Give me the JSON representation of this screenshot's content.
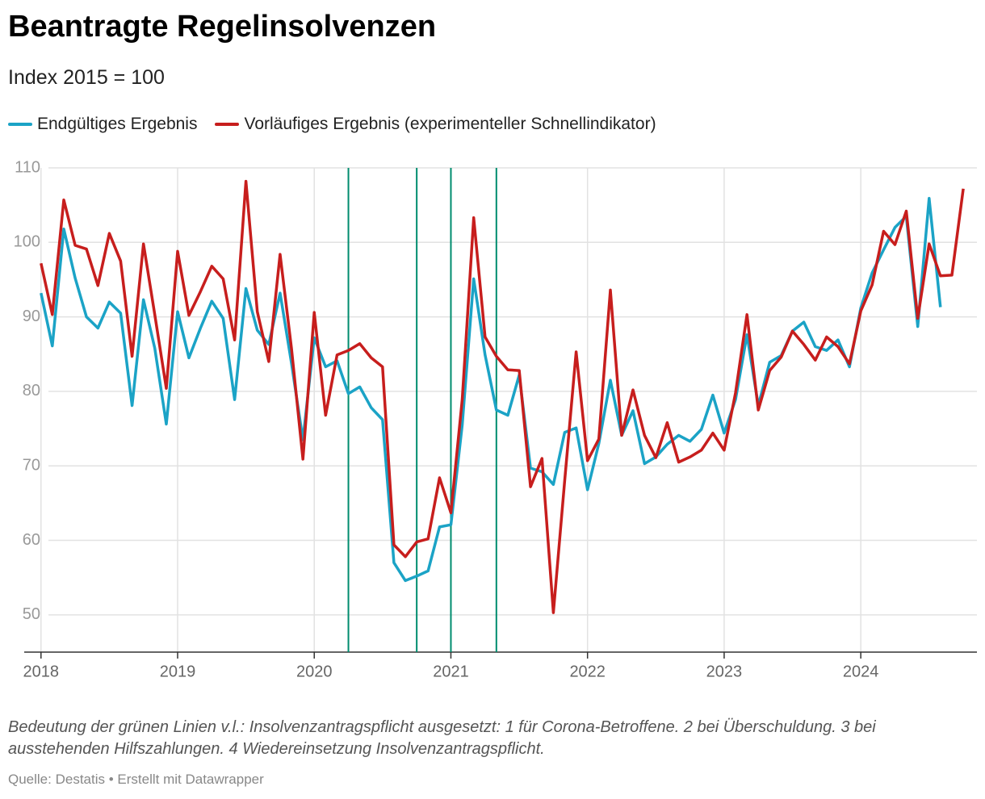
{
  "chart_data": {
    "type": "line",
    "title": "Beantragte Regelinsolvenzen",
    "subtitle": "Index 2015 = 100",
    "notes": "Bedeutung der grünen Linien v.l.: Insolvenzantragspflicht ausgesetzt: 1 für Corona-Betroffene. 2 bei Überschuldung. 3 bei ausstehenden Hilfszahlungen. 4 Wiedereinsetzung Insolvenzantragspflicht.",
    "source": "Quelle: Destatis • Erstellt mit Datawrapper",
    "x": [
      2018,
      2018.083,
      2018.167,
      2018.25,
      2018.333,
      2018.417,
      2018.5,
      2018.583,
      2018.667,
      2018.75,
      2018.833,
      2018.917,
      2019,
      2019.083,
      2019.167,
      2019.25,
      2019.333,
      2019.417,
      2019.5,
      2019.583,
      2019.667,
      2019.75,
      2019.833,
      2019.917,
      2020,
      2020.083,
      2020.167,
      2020.25,
      2020.333,
      2020.417,
      2020.5,
      2020.583,
      2020.667,
      2020.75,
      2020.833,
      2020.917,
      2021,
      2021.083,
      2021.167,
      2021.25,
      2021.333,
      2021.417,
      2021.5,
      2021.583,
      2021.667,
      2021.75,
      2021.833,
      2021.917,
      2022,
      2022.083,
      2022.167,
      2022.25,
      2022.333,
      2022.417,
      2022.5,
      2022.583,
      2022.667,
      2022.75,
      2022.833,
      2022.917,
      2023,
      2023.083,
      2023.167,
      2023.25,
      2023.333,
      2023.417,
      2023.5,
      2023.583,
      2023.667,
      2023.75,
      2023.833,
      2023.917,
      2024,
      2024.083,
      2024.167,
      2024.25,
      2024.333,
      2024.417,
      2024.5,
      2024.583,
      2024.667,
      2024.75
    ],
    "series": [
      {
        "name": "Endgültiges Ergebnis",
        "color": "#1ba3c6",
        "values": [
          93.2,
          86.1,
          101.8,
          95.2,
          90.0,
          88.5,
          92.0,
          90.5,
          78.1,
          92.3,
          85.8,
          75.6,
          90.7,
          84.5,
          88.5,
          92.1,
          89.8,
          78.9,
          93.8,
          88.2,
          86.3,
          93.2,
          83.8,
          73.5,
          87.2,
          83.3,
          84.1,
          79.7,
          80.6,
          77.8,
          76.2,
          57.0,
          54.6,
          55.2,
          55.9,
          61.8,
          62.1,
          75.5,
          95.1,
          84.9,
          77.5,
          76.8,
          82.2,
          69.7,
          69.2,
          67.5,
          74.5,
          75.1,
          66.8,
          73.0,
          81.5,
          74.1,
          77.4,
          70.3,
          71.2,
          72.9,
          74.1,
          73.3,
          74.9,
          79.5,
          74.4,
          78.9,
          87.6,
          78.1,
          83.9,
          84.8,
          88.1,
          89.3,
          86.0,
          85.5,
          86.9,
          83.3,
          91.2,
          95.9,
          99.0,
          102.0,
          103.5,
          88.7,
          105.9,
          91.3,
          null,
          null
        ]
      },
      {
        "name": "Vorläufiges Ergebnis (experimenteller Schnellindikator)",
        "color": "#c71e1d",
        "values": [
          97.2,
          90.3,
          105.7,
          99.6,
          99.1,
          94.2,
          101.2,
          97.5,
          84.7,
          99.8,
          90.3,
          80.4,
          98.8,
          90.2,
          93.4,
          96.8,
          95.1,
          86.9,
          108.2,
          90.7,
          84.0,
          98.4,
          85.8,
          70.9,
          90.6,
          76.8,
          84.9,
          85.5,
          86.4,
          84.5,
          83.3,
          59.4,
          57.8,
          59.8,
          60.2,
          68.4,
          63.7,
          78.9,
          103.3,
          87.3,
          84.7,
          82.9,
          82.8,
          67.2,
          71.0,
          50.3,
          68.0,
          85.3,
          70.7,
          73.6,
          93.6,
          74.1,
          80.2,
          74.1,
          71.1,
          75.8,
          70.5,
          71.2,
          72.1,
          74.4,
          72.1,
          79.8,
          90.3,
          77.5,
          82.8,
          84.6,
          88.1,
          86.3,
          84.2,
          87.3,
          86.0,
          83.7,
          90.8,
          94.3,
          101.5,
          99.7,
          104.2,
          89.8,
          99.8,
          95.5,
          95.6,
          107.2
        ]
      }
    ],
    "vlines": [
      2020.25,
      2020.75,
      2021,
      2021.333
    ],
    "vline_color": "#008c6e",
    "xlim": [
      2017.7,
      2024.85
    ],
    "xticks": [
      2018,
      2019,
      2020,
      2021,
      2022,
      2023,
      2024
    ],
    "ylim": [
      45,
      110
    ],
    "yticks": [
      50,
      60,
      70,
      80,
      90,
      100,
      110
    ],
    "grid": true
  }
}
